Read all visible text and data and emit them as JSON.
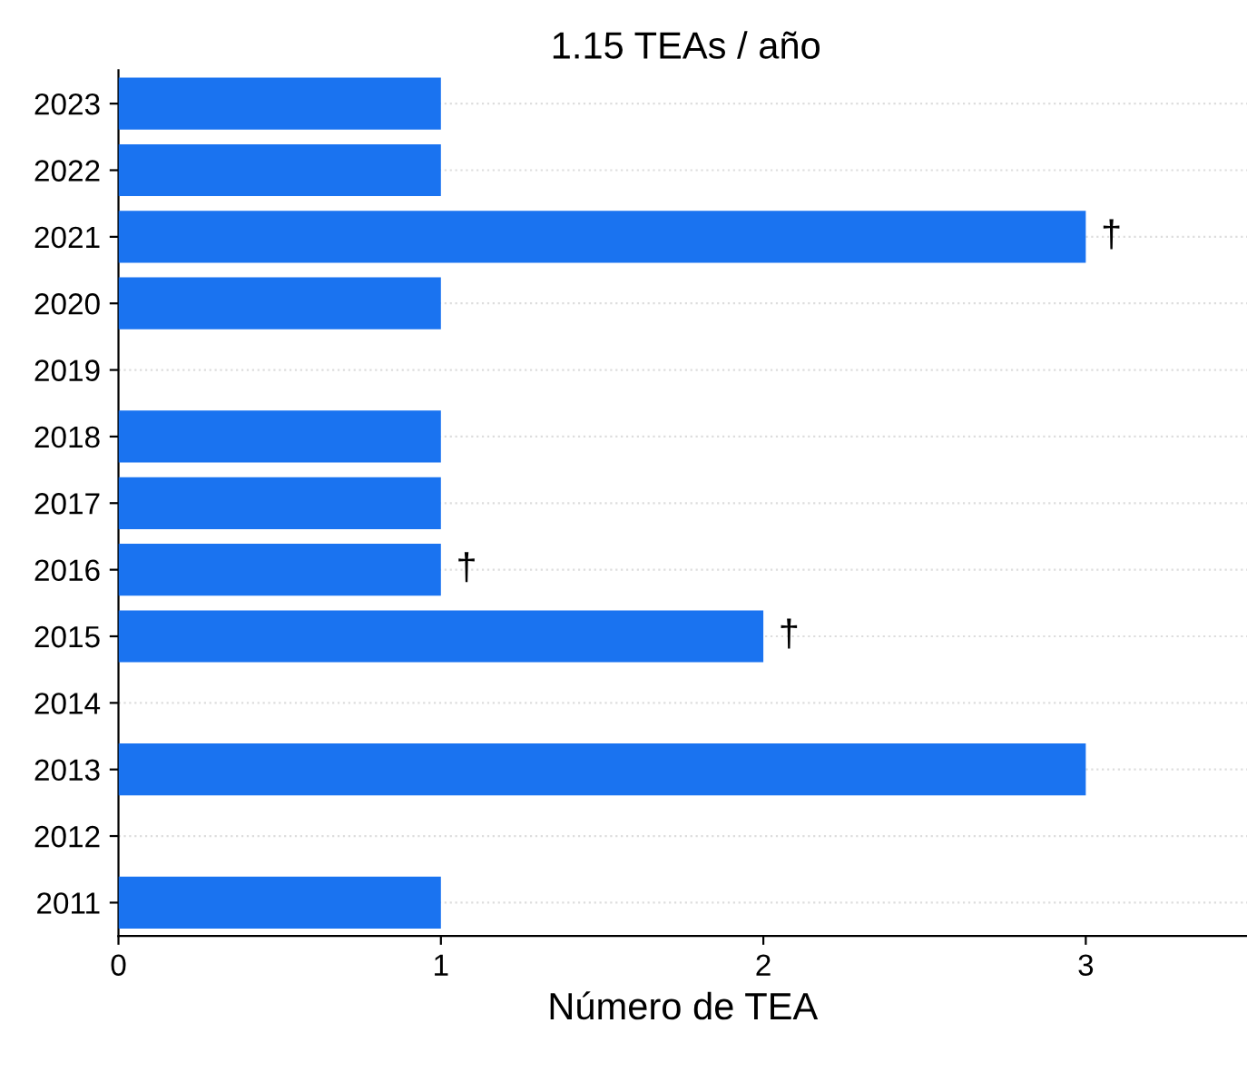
{
  "chart_data": {
    "type": "bar",
    "orientation": "horizontal",
    "title": "1.15 TEAs / año",
    "xlabel": "Número de TEA",
    "categories": [
      "2023",
      "2022",
      "2021",
      "2020",
      "2019",
      "2018",
      "2017",
      "2016",
      "2015",
      "2014",
      "2013",
      "2012",
      "2011"
    ],
    "values": [
      1,
      1,
      3,
      1,
      0,
      1,
      1,
      1,
      2,
      0,
      3,
      0,
      1
    ],
    "color": "#1a73f0",
    "xlim": [
      0,
      3.5
    ],
    "xticks": [
      0,
      1,
      2,
      3
    ],
    "grid": "y",
    "annotations": [
      {
        "text": "†",
        "x": 3,
        "y": "2021"
      },
      {
        "text": "†",
        "x": 1,
        "y": "2016"
      },
      {
        "text": "†",
        "x": 2,
        "y": "2015"
      }
    ]
  }
}
